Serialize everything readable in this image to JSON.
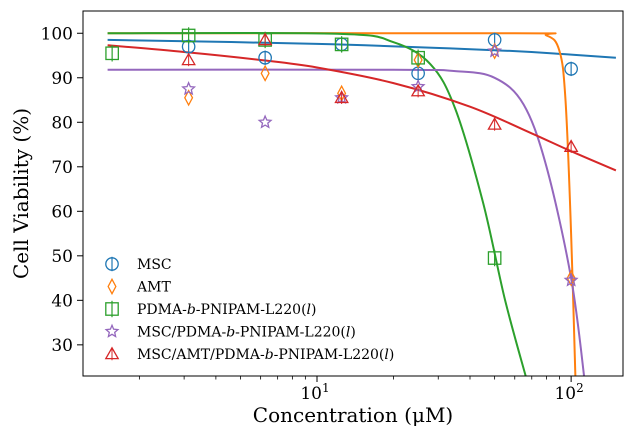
{
  "chart_data": {
    "type": "scatter",
    "title": "",
    "xlabel": "Concentration (μM)",
    "ylabel": "Cell Viability (%)",
    "xscale": "log",
    "xlim": [
      1.2,
      160
    ],
    "ylim": [
      23,
      105
    ],
    "x_ticks": [
      {
        "value": 10,
        "label_base": "10",
        "label_exp": "1"
      },
      {
        "value": 100,
        "label_base": "10",
        "label_exp": "2"
      }
    ],
    "y_ticks": [
      30,
      40,
      50,
      60,
      70,
      80,
      90,
      100
    ],
    "grid": false,
    "legend_position": "lower-left",
    "series": [
      {
        "name": "MSC",
        "color": "#1f77b4",
        "marker": "circle",
        "x": [
          3.125,
          6.25,
          12.5,
          25,
          50,
          100
        ],
        "y": [
          97,
          94.5,
          97.5,
          91,
          98.5,
          92
        ],
        "fit": [
          [
            1.5,
            98.5
          ],
          [
            10,
            97.6
          ],
          [
            50,
            96.2
          ],
          [
            100,
            95.2
          ],
          [
            150,
            94.5
          ]
        ]
      },
      {
        "name": "AMT",
        "color": "#ff7f0e",
        "marker": "thin-diamond",
        "x": [
          3.125,
          6.25,
          12.5,
          25,
          50,
          100
        ],
        "y": [
          85.5,
          91,
          86.5,
          94,
          96,
          45
        ],
        "fit": [
          [
            1.5,
            100
          ],
          [
            60,
            100
          ],
          [
            80,
            99.5
          ],
          [
            90,
            96
          ],
          [
            95,
            85
          ],
          [
            100,
            55
          ],
          [
            104,
            22
          ]
        ]
      },
      {
        "name": "PDMA-b-PNIPAM-L220(l)",
        "color": "#2ca02c",
        "marker": "square",
        "x": [
          1.5625,
          3.125,
          6.25,
          12.5,
          25,
          50
        ],
        "y": [
          95.5,
          99.5,
          98.5,
          97.5,
          94.5,
          49.5
        ],
        "fit": [
          [
            1.5,
            100
          ],
          [
            12,
            99.9
          ],
          [
            20,
            98
          ],
          [
            28,
            93
          ],
          [
            35,
            83
          ],
          [
            45,
            62
          ],
          [
            55,
            40
          ],
          [
            67,
            22
          ]
        ]
      },
      {
        "name": "MSC/PDMA-b-PNIPAM-L220(l)",
        "color": "#9467bd",
        "marker": "star",
        "x": [
          3.125,
          6.25,
          12.5,
          25,
          50,
          100
        ],
        "y": [
          87.5,
          80,
          85.5,
          88,
          96,
          44.5
        ],
        "fit": [
          [
            1.5,
            91.8
          ],
          [
            20,
            91.8
          ],
          [
            35,
            91.5
          ],
          [
            50,
            90
          ],
          [
            65,
            84
          ],
          [
            80,
            70
          ],
          [
            100,
            45
          ],
          [
            113,
            22
          ]
        ]
      },
      {
        "name": "MSC/AMT/PDMA-b-PNIPAM-L220(l)",
        "color": "#d62728",
        "marker": "triangle",
        "x": [
          3.125,
          6.25,
          12.5,
          25,
          50,
          100
        ],
        "y": [
          94,
          98.5,
          85.5,
          87,
          79.5,
          74.5
        ],
        "fit": [
          [
            1.5,
            97.3
          ],
          [
            3,
            95.8
          ],
          [
            6,
            94
          ],
          [
            10,
            92.3
          ],
          [
            20,
            88.8
          ],
          [
            40,
            83.5
          ],
          [
            70,
            77.5
          ],
          [
            100,
            73.5
          ],
          [
            150,
            69.2
          ]
        ]
      }
    ],
    "legend_entries": [
      {
        "prefix": "MSC",
        "italic": "",
        "suffix": "",
        "paren": ""
      },
      {
        "prefix": "AMT",
        "italic": "",
        "suffix": "",
        "paren": ""
      },
      {
        "prefix": "PDMA-",
        "italic": "b",
        "suffix": "-PNIPAM-L220",
        "paren": "l"
      },
      {
        "prefix": "MSC/PDMA-",
        "italic": "b",
        "suffix": "-PNIPAM-L220",
        "paren": "l"
      },
      {
        "prefix": "MSC/AMT/PDMA-",
        "italic": "b",
        "suffix": "-PNIPAM-L220",
        "paren": "l"
      }
    ]
  }
}
